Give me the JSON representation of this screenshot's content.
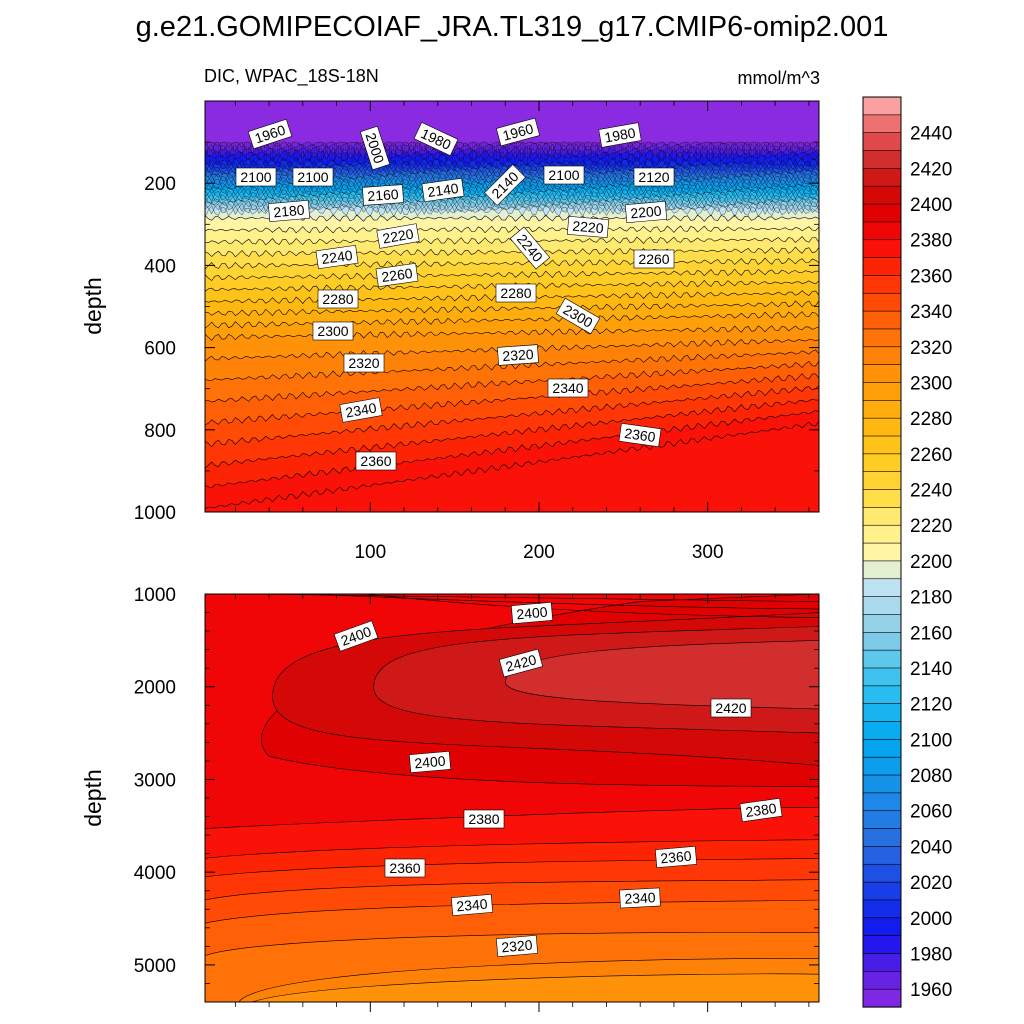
{
  "title": "g.e21.GOMIPECOIAF_JRA.TL319_g17.CMIP6-omip2.001",
  "chart_data": [
    {
      "type": "contour",
      "panel": "upper",
      "variable_label": "DIC, WPAC_18S-18N",
      "units": "mmol/m^3",
      "ylabel": "depth",
      "xlabel": "",
      "xlim": [
        2,
        366
      ],
      "ylim": [
        1000,
        0
      ],
      "yticks": [
        "200",
        "400",
        "600",
        "800",
        "1000"
      ],
      "xticks": [
        "100",
        "200",
        "300"
      ],
      "contour_labels": [
        "1960",
        "2000",
        "1980",
        "1960",
        "1980",
        "2100",
        "2100",
        "2160",
        "2140",
        "2140",
        "2100",
        "2120",
        "2180",
        "2220",
        "2220",
        "2200",
        "2240",
        "2240",
        "2260",
        "2260",
        "2280",
        "2280",
        "2300",
        "2300",
        "2320",
        "2320",
        "2340",
        "2340",
        "2360",
        "2360"
      ]
    },
    {
      "type": "contour",
      "panel": "lower",
      "ylabel": "depth",
      "xlabel": "",
      "xlim": [
        2,
        366
      ],
      "ylim": [
        5400,
        1000
      ],
      "yticks": [
        "1000",
        "2000",
        "3000",
        "4000",
        "5000"
      ],
      "contour_labels": [
        "2400",
        "2400",
        "2420",
        "2420",
        "2400",
        "2380",
        "2380",
        "2360",
        "2360",
        "2340",
        "2340",
        "2320"
      ]
    }
  ],
  "colorbar": {
    "min": 1950,
    "max": 2460,
    "step": 10,
    "labels": [
      "2440",
      "2420",
      "2400",
      "2380",
      "2360",
      "2340",
      "2320",
      "2300",
      "2280",
      "2260",
      "2240",
      "2220",
      "2200",
      "2180",
      "2160",
      "2140",
      "2120",
      "2100",
      "2080",
      "2060",
      "2040",
      "2020",
      "2000",
      "1980",
      "1960"
    ]
  }
}
